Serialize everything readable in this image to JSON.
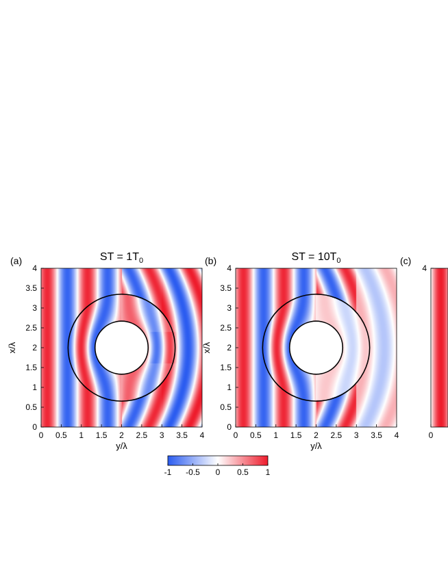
{
  "colors": {
    "negative": "#2b5cf0",
    "zero": "#ffffff",
    "positive": "#ee1c2c",
    "circle": "#000000"
  },
  "chart_data": [
    {
      "type": "heatmap",
      "panel_label": "(a)",
      "title_main": "ST = 1T",
      "title_sub": "0",
      "xlabel": "y/λ",
      "ylabel": "x/λ",
      "xlim": [
        0,
        4
      ],
      "ylim": [
        0,
        4
      ],
      "x_ticks": [
        "0",
        "0.5",
        "1",
        "1.5",
        "2",
        "2.5",
        "3",
        "3.5",
        "4"
      ],
      "y_ticks": [
        "0",
        "0.5",
        "1",
        "1.5",
        "2",
        "2.5",
        "3",
        "3.5",
        "4"
      ],
      "circles": [
        {
          "cx": 2,
          "cy": 2,
          "r": 1.33
        },
        {
          "cx": 2,
          "cy": 2,
          "r": 0.66
        }
      ],
      "field": {
        "wavelength": 1.0,
        "phase": 0.6,
        "inner_cloak": true,
        "transmitted_strength": 1.0
      }
    },
    {
      "type": "heatmap",
      "panel_label": "(b)",
      "title_main": "ST = 10T",
      "title_sub": "0",
      "xlabel": "y/λ",
      "ylabel": "x/λ",
      "xlim": [
        0,
        4
      ],
      "ylim": [
        0,
        4
      ],
      "x_ticks": [
        "0",
        "0.5",
        "1",
        "1.5",
        "2",
        "2.5",
        "3",
        "3.5",
        "4"
      ],
      "y_ticks": [
        "0",
        "0.5",
        "1",
        "1.5",
        "2",
        "2.5",
        "3",
        "3.5",
        "4"
      ],
      "circles": [
        {
          "cx": 2,
          "cy": 2,
          "r": 1.33
        },
        {
          "cx": 2,
          "cy": 2,
          "r": 0.66
        }
      ],
      "field": {
        "wavelength": 1.0,
        "phase": 0.35,
        "inner_cloak": true,
        "transmitted_strength": 0.35
      }
    },
    {
      "type": "heatmap",
      "panel_label": "(c)",
      "y_ticks": [
        "4"
      ],
      "x_ticks": [
        "0"
      ],
      "ylabel": "",
      "xlabel": "",
      "partial": true,
      "field": {
        "wavelength": 1.0,
        "phase": 0.0
      }
    }
  ],
  "colorbar": {
    "ticks": [
      "-1",
      "-0.5",
      "0",
      "0.5",
      "1"
    ],
    "range": [
      -1,
      1
    ]
  }
}
